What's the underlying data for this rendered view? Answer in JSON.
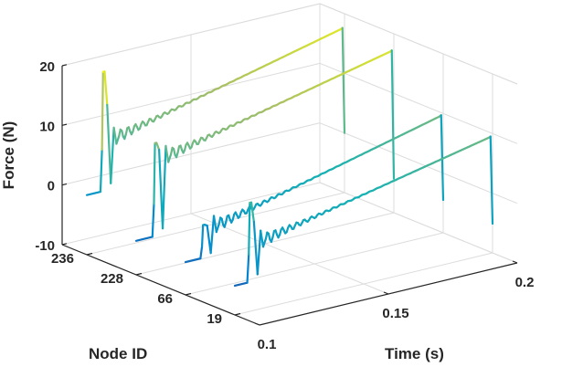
{
  "chart_data": {
    "type": "line",
    "view": "3d-waterfall",
    "xlabel": "Node ID",
    "ylabel": "Time (s)",
    "zlabel": "Force (N)",
    "node_ticks": [
      "236",
      "228",
      "66",
      "19"
    ],
    "time_ticks": [
      {
        "value": 0.1,
        "label": "0.1"
      },
      {
        "value": 0.15,
        "label": "0.15"
      },
      {
        "value": 0.2,
        "label": "0.2"
      }
    ],
    "force_ticks": [
      {
        "value": -10,
        "label": "-10"
      },
      {
        "value": 0,
        "label": "0"
      },
      {
        "value": 10,
        "label": "10"
      },
      {
        "value": 20,
        "label": "20"
      }
    ],
    "time_range": [
      0.1,
      0.2
    ],
    "force_range": [
      -10,
      20
    ],
    "grid": true,
    "colormap": "parula",
    "series": [
      {
        "node": "236",
        "t_start": 0.1,
        "t_end": 0.2,
        "pre_value": 0.0,
        "event_time": 0.1065,
        "peak_value": 20.0,
        "settle_start": 8.6,
        "settle_end": 17.7
      },
      {
        "node": "228",
        "t_start": 0.1,
        "t_end": 0.2,
        "pre_value": -4.3,
        "event_time": 0.1075,
        "peak_value": 11.3,
        "settle_start": 8.8,
        "settle_end": 17.3
      },
      {
        "node": "66",
        "t_start": 0.1,
        "t_end": 0.2,
        "pre_value": -4.5,
        "event_time": 0.107,
        "peak_value": 1.0,
        "settle_start": 0.5,
        "settle_end": 9.8
      },
      {
        "node": "19",
        "t_start": 0.1,
        "t_end": 0.2,
        "pre_value": -5.1,
        "event_time": 0.106,
        "peak_value": 8.2,
        "settle_start": 1.5,
        "settle_end": 9.6
      }
    ]
  }
}
